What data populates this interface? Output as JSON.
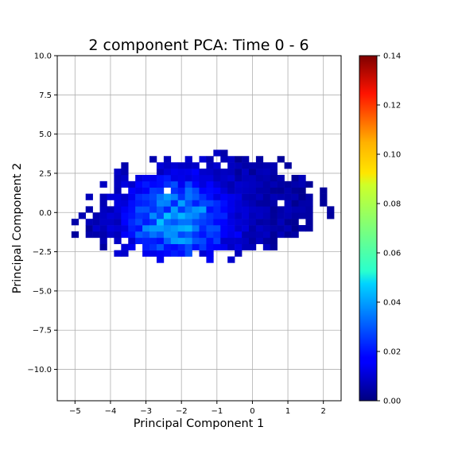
{
  "chart_data": {
    "type": "heatmap",
    "title": "2 component PCA: Time 0 - 6",
    "xlabel": "Principal Component 1",
    "ylabel": "Principal Component 2",
    "xlim": [
      -5.5,
      2.5
    ],
    "ylim": [
      -12,
      10
    ],
    "xticks": [
      "−5",
      "−4",
      "−3",
      "−2",
      "−1",
      "0",
      "1",
      "2"
    ],
    "yticks": [
      "−10.0",
      "−7.5",
      "−5.0",
      "−2.5",
      "0.0",
      "2.5",
      "5.0",
      "7.5",
      "10.0"
    ],
    "grid": true,
    "colormap": "jet",
    "colorbar": {
      "min": 0.0,
      "max": 0.14,
      "ticks": [
        "0.00",
        "0.02",
        "0.04",
        "0.06",
        "0.08",
        "0.10",
        "0.12",
        "0.14"
      ]
    },
    "density_peak": {
      "x": -2.1,
      "y": -0.5,
      "max_density": 0.04
    },
    "bin_width": [
      0.2,
      0.4
    ]
  }
}
